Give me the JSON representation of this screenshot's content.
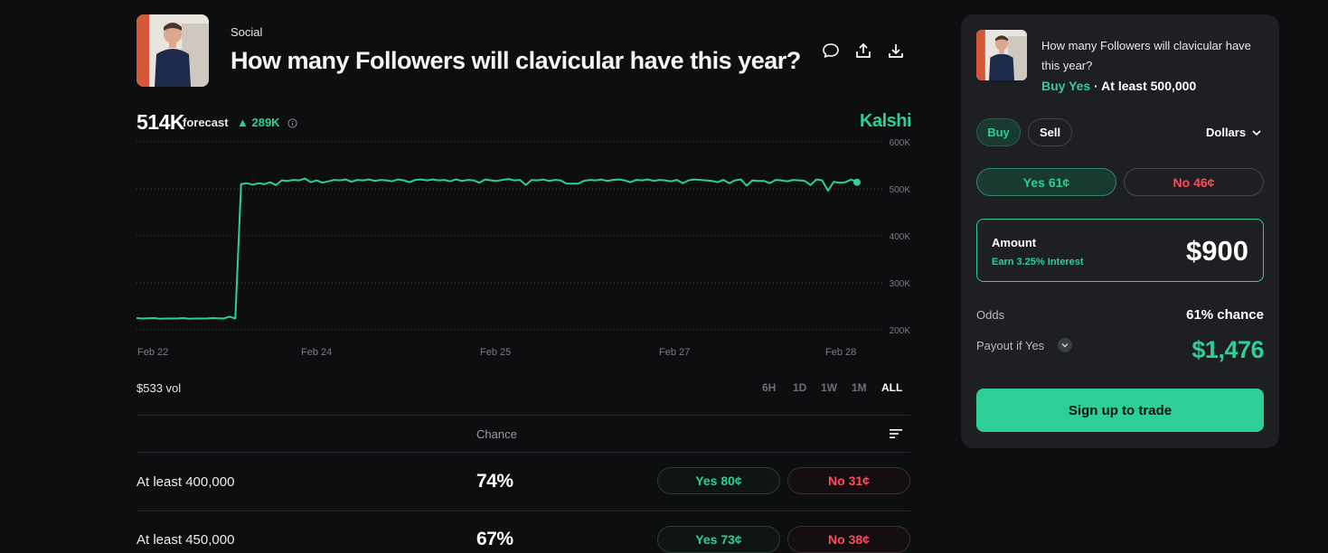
{
  "header": {
    "category": "Social",
    "title": "How many Followers will clavicular have this year?",
    "icons": [
      "comment-icon",
      "share-icon",
      "download-icon"
    ]
  },
  "forecast": {
    "value": "514K",
    "label": "forecast",
    "change": "▲ 289K",
    "brand": "Kalshi"
  },
  "chart_data": {
    "type": "line",
    "title": "",
    "xlabel": "",
    "ylabel": "",
    "x_ticks": [
      "Feb 22",
      "Feb 24",
      "Feb 25",
      "Feb 27",
      "Feb 28"
    ],
    "y_ticks": [
      "600K",
      "500K",
      "400K",
      "300K",
      "200K"
    ],
    "ylim": [
      200000,
      600000
    ],
    "grid": true,
    "line_color": "#2ecf96",
    "series": [
      {
        "name": "",
        "values": [
          225000,
          224000,
          224500,
          225000,
          223500,
          224000,
          224000,
          224000,
          225000,
          223500,
          224000,
          224000,
          224000,
          225000,
          224500,
          224000,
          228000,
          224000,
          510000,
          512000,
          509000,
          512000,
          510000,
          514000,
          508000,
          518000,
          517000,
          519000,
          518000,
          522000,
          514000,
          518000,
          513000,
          516000,
          519000,
          518000,
          520000,
          515000,
          519000,
          518000,
          520000,
          517000,
          519000,
          518000,
          516000,
          520000,
          518000,
          514000,
          519000,
          520000,
          518000,
          520000,
          518000,
          519000,
          516000,
          520000,
          517000,
          519000,
          518000,
          513000,
          520000,
          518000,
          517000,
          519000,
          521000,
          518000,
          519000,
          508000,
          519000,
          518000,
          520000,
          517000,
          519000,
          518000,
          511000,
          511000,
          511000,
          517000,
          519000,
          518000,
          520000,
          517000,
          519000,
          520000,
          518000,
          514000,
          519000,
          518000,
          520000,
          517000,
          519000,
          518000,
          516000,
          519000,
          512000,
          518000,
          520000,
          519000,
          518000,
          517000,
          514000,
          519000,
          512000,
          518000,
          520000,
          507000,
          518000,
          517000,
          517000,
          512000,
          519000,
          518000,
          516000,
          519000,
          518000,
          517000,
          508000,
          520000,
          518000,
          496000,
          515000,
          513000,
          514000,
          520000,
          514000
        ]
      }
    ]
  },
  "volume": "$533 vol",
  "ranges": [
    "6H",
    "1D",
    "1W",
    "1M",
    "ALL"
  ],
  "table": {
    "header_chance": "Chance",
    "rows": [
      {
        "label": "At least 400,000",
        "chance": "74%",
        "yes": "Yes 80¢",
        "no": "No 31¢"
      },
      {
        "label": "At least 450,000",
        "chance": "67%",
        "yes": "Yes 73¢",
        "no": "No 38¢"
      }
    ]
  },
  "panel": {
    "question": "How many Followers will clavicular have this year?",
    "position_action": "Buy Yes",
    "position_sep": " · ",
    "position_outcome": "At least 500,000",
    "buy": "Buy",
    "sell": "Sell",
    "currency": "Dollars",
    "yes_price": "Yes 61¢",
    "no_price": "No 46¢",
    "amount_label": "Amount",
    "amount_sub": "Earn 3.25% Interest",
    "amount_value": "$900",
    "odds_label": "Odds",
    "odds_value": "61% chance",
    "payout_label": "Payout if Yes",
    "payout_value": "$1,476",
    "signup": "Sign up to trade"
  }
}
